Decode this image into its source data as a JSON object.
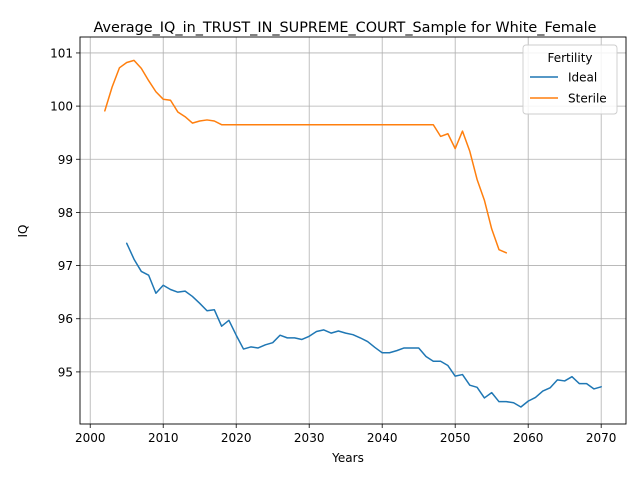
{
  "chart_data": {
    "type": "line",
    "title": "Average_IQ_in_TRUST_IN_SUPREME_COURT_Sample for White_Female",
    "xlabel": "Years",
    "ylabel": "IQ",
    "xlim": [
      1998.6,
      2073.4
    ],
    "ylim": [
      94.02,
      101.3
    ],
    "xticks": [
      2000,
      2010,
      2020,
      2030,
      2040,
      2050,
      2060,
      2070
    ],
    "yticks": [
      95,
      96,
      97,
      98,
      99,
      100,
      101
    ],
    "grid": true,
    "legend": {
      "title": "Fertility",
      "placement": "top-right"
    },
    "series": [
      {
        "name": "Ideal",
        "color": "#1f77b4",
        "points": [
          [
            2005,
            97.42
          ],
          [
            2006,
            97.12
          ],
          [
            2007,
            96.89
          ],
          [
            2008,
            96.82
          ],
          [
            2009,
            96.48
          ],
          [
            2010,
            96.63
          ],
          [
            2011,
            96.55
          ],
          [
            2012,
            96.5
          ],
          [
            2013,
            96.52
          ],
          [
            2014,
            96.42
          ],
          [
            2015,
            96.29
          ],
          [
            2016,
            96.15
          ],
          [
            2017,
            96.17
          ],
          [
            2018,
            95.86
          ],
          [
            2019,
            95.97
          ],
          [
            2020,
            95.69
          ],
          [
            2021,
            95.43
          ],
          [
            2022,
            95.47
          ],
          [
            2023,
            95.45
          ],
          [
            2024,
            95.51
          ],
          [
            2025,
            95.55
          ],
          [
            2026,
            95.69
          ],
          [
            2027,
            95.64
          ],
          [
            2028,
            95.64
          ],
          [
            2029,
            95.61
          ],
          [
            2030,
            95.67
          ],
          [
            2031,
            95.76
          ],
          [
            2032,
            95.79
          ],
          [
            2033,
            95.73
          ],
          [
            2034,
            95.77
          ],
          [
            2035,
            95.73
          ],
          [
            2036,
            95.7
          ],
          [
            2037,
            95.64
          ],
          [
            2038,
            95.57
          ],
          [
            2039,
            95.46
          ],
          [
            2040,
            95.36
          ],
          [
            2041,
            95.36
          ],
          [
            2042,
            95.4
          ],
          [
            2043,
            95.45
          ],
          [
            2044,
            95.45
          ],
          [
            2045,
            95.45
          ],
          [
            2046,
            95.29
          ],
          [
            2047,
            95.2
          ],
          [
            2048,
            95.2
          ],
          [
            2049,
            95.12
          ],
          [
            2050,
            94.92
          ],
          [
            2051,
            94.95
          ],
          [
            2052,
            94.75
          ],
          [
            2053,
            94.71
          ],
          [
            2054,
            94.51
          ],
          [
            2055,
            94.61
          ],
          [
            2056,
            94.44
          ],
          [
            2057,
            94.44
          ],
          [
            2058,
            94.42
          ],
          [
            2059,
            94.34
          ],
          [
            2060,
            94.45
          ],
          [
            2061,
            94.52
          ],
          [
            2062,
            94.64
          ],
          [
            2063,
            94.7
          ],
          [
            2064,
            94.85
          ],
          [
            2065,
            94.83
          ],
          [
            2066,
            94.91
          ],
          [
            2067,
            94.78
          ],
          [
            2068,
            94.78
          ],
          [
            2069,
            94.68
          ],
          [
            2070,
            94.72
          ]
        ]
      },
      {
        "name": "Sterile",
        "color": "#ff7f0e",
        "points": [
          [
            2002,
            99.91
          ],
          [
            2003,
            100.36
          ],
          [
            2004,
            100.72
          ],
          [
            2005,
            100.82
          ],
          [
            2006,
            100.86
          ],
          [
            2007,
            100.71
          ],
          [
            2008,
            100.48
          ],
          [
            2009,
            100.27
          ],
          [
            2010,
            100.13
          ],
          [
            2011,
            100.11
          ],
          [
            2012,
            99.89
          ],
          [
            2013,
            99.8
          ],
          [
            2014,
            99.68
          ],
          [
            2015,
            99.72
          ],
          [
            2016,
            99.74
          ],
          [
            2017,
            99.72
          ],
          [
            2018,
            99.65
          ],
          [
            2019,
            99.65
          ],
          [
            2020,
            99.65
          ],
          [
            2021,
            99.65
          ],
          [
            2022,
            99.65
          ],
          [
            2023,
            99.65
          ],
          [
            2024,
            99.65
          ],
          [
            2025,
            99.65
          ],
          [
            2026,
            99.65
          ],
          [
            2027,
            99.65
          ],
          [
            2028,
            99.65
          ],
          [
            2029,
            99.65
          ],
          [
            2030,
            99.65
          ],
          [
            2031,
            99.65
          ],
          [
            2032,
            99.65
          ],
          [
            2033,
            99.65
          ],
          [
            2034,
            99.65
          ],
          [
            2035,
            99.65
          ],
          [
            2036,
            99.65
          ],
          [
            2037,
            99.65
          ],
          [
            2038,
            99.65
          ],
          [
            2039,
            99.65
          ],
          [
            2040,
            99.65
          ],
          [
            2041,
            99.65
          ],
          [
            2042,
            99.65
          ],
          [
            2043,
            99.65
          ],
          [
            2044,
            99.65
          ],
          [
            2045,
            99.65
          ],
          [
            2046,
            99.65
          ],
          [
            2047,
            99.65
          ],
          [
            2048,
            99.43
          ],
          [
            2049,
            99.48
          ],
          [
            2050,
            99.2
          ],
          [
            2051,
            99.53
          ],
          [
            2052,
            99.15
          ],
          [
            2053,
            98.62
          ],
          [
            2054,
            98.23
          ],
          [
            2055,
            97.69
          ],
          [
            2056,
            97.3
          ],
          [
            2057,
            97.24
          ]
        ]
      }
    ]
  }
}
